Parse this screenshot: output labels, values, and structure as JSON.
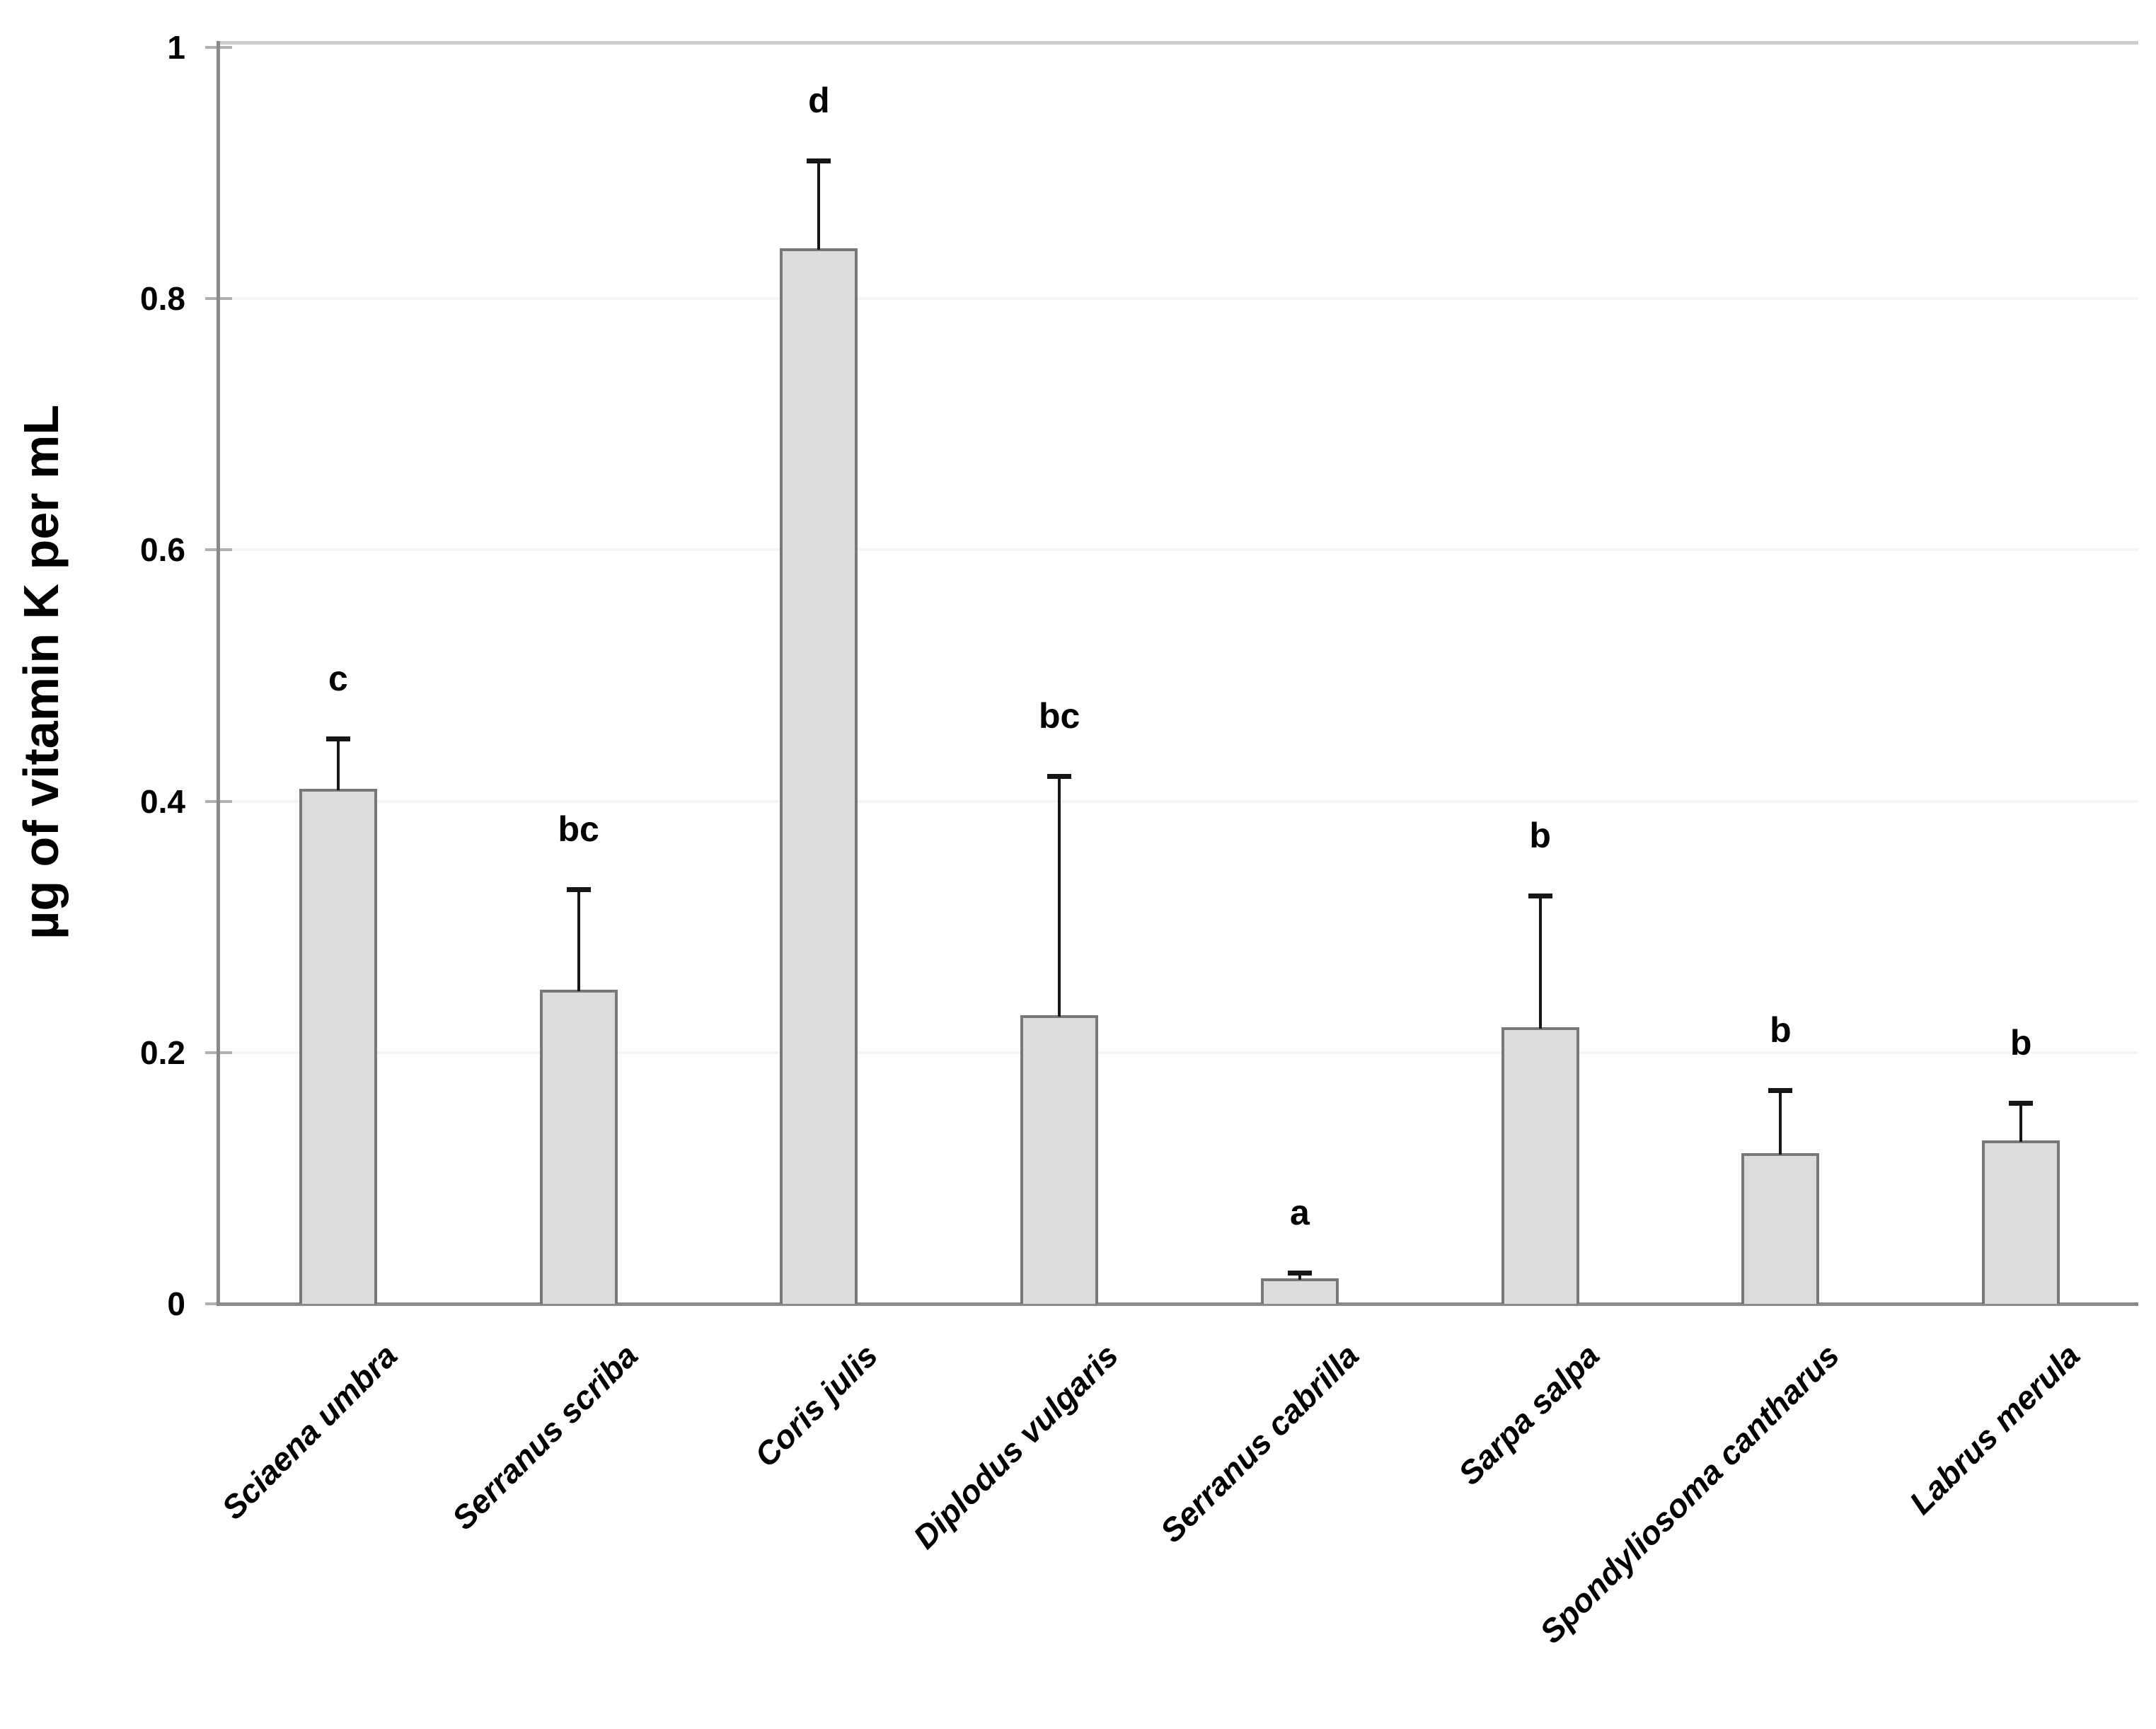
{
  "chart_data": {
    "type": "bar",
    "title": "",
    "xlabel": "",
    "ylabel": "µg of vitamin K per mL",
    "ylim": [
      0,
      1
    ],
    "yticks": [
      0,
      0.2,
      0.4,
      0.6,
      0.8,
      1
    ],
    "ytick_labels": [
      "0",
      "0.2",
      "0.4",
      "0.6",
      "0.8",
      "1"
    ],
    "grid": "none (faint gridline remnants)",
    "legend": "none",
    "categories": [
      "Sciaena umbra",
      "Serranus scriba",
      "Coris julis",
      "Diplodus vulgaris",
      "Serranus cabrilla",
      "Sarpa salpa",
      "Spondyliosoma cantharus",
      "Labrus merula"
    ],
    "values": [
      0.41,
      0.25,
      0.84,
      0.23,
      0.02,
      0.22,
      0.12,
      0.13
    ],
    "errors_upper": [
      0.04,
      0.08,
      0.07,
      0.19,
      0.005,
      0.105,
      0.05,
      0.03
    ],
    "significance_letters": [
      "c",
      "bc",
      "d",
      "bc",
      "a",
      "b",
      "b",
      "b"
    ],
    "colors": {
      "bar_fill": "#dcdcdc",
      "bar_border": "#787878",
      "axis": "#8a8a8a",
      "error_bar": "#161616",
      "text": "#000000"
    }
  }
}
